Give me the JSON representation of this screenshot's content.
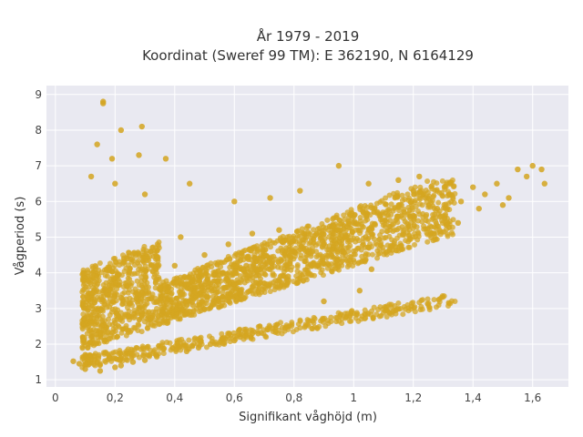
{
  "chart_data": {
    "type": "scatter",
    "title_lines": [
      "År 1979 - 2019",
      "Koordinat (Sweref 99 TM): E 362190, N 6164129"
    ],
    "xlabel": "Signifikant våghöjd (m)",
    "ylabel": "Vågperiod (s)",
    "xlim": [
      -0.03,
      1.72
    ],
    "ylim": [
      0.8,
      9.25
    ],
    "x_ticks": [
      0,
      0.2,
      0.4,
      0.6,
      0.8,
      1,
      1.2,
      1.4,
      1.6
    ],
    "x_tick_labels": [
      "0",
      "0,2",
      "0,4",
      "0,6",
      "0,8",
      "1",
      "1,2",
      "1,4",
      "1,6"
    ],
    "y_ticks": [
      1,
      2,
      3,
      4,
      5,
      6,
      7,
      8,
      9
    ],
    "y_tick_labels": [
      "1",
      "2",
      "3",
      "4",
      "5",
      "6",
      "7",
      "8",
      "9"
    ],
    "grid": true,
    "legend": "none",
    "marker_color": "#D4A520",
    "background_color": "#E9E9F1",
    "points": [
      [
        0.06,
        1.52
      ],
      [
        0.08,
        1.45
      ],
      [
        0.1,
        1.3
      ],
      [
        0.1,
        1.7
      ],
      [
        0.12,
        2.2
      ],
      [
        0.14,
        2.8
      ],
      [
        0.15,
        1.25
      ],
      [
        0.16,
        3.5
      ],
      [
        0.18,
        4.1
      ],
      [
        0.2,
        1.35
      ],
      [
        0.2,
        2.6
      ],
      [
        0.22,
        3.3
      ],
      [
        0.24,
        4.4
      ],
      [
        0.26,
        1.5
      ],
      [
        0.28,
        3.0
      ],
      [
        0.3,
        3.8
      ],
      [
        0.32,
        4.6
      ],
      [
        0.34,
        1.65
      ],
      [
        0.36,
        2.9
      ],
      [
        0.38,
        3.6
      ],
      [
        0.4,
        4.2
      ],
      [
        0.42,
        5.0
      ],
      [
        0.44,
        1.8
      ],
      [
        0.46,
        3.1
      ],
      [
        0.48,
        3.9
      ],
      [
        0.5,
        4.5
      ],
      [
        0.52,
        2.0
      ],
      [
        0.54,
        3.3
      ],
      [
        0.56,
        4.0
      ],
      [
        0.58,
        4.8
      ],
      [
        0.6,
        2.1
      ],
      [
        0.62,
        3.4
      ],
      [
        0.64,
        4.2
      ],
      [
        0.66,
        5.1
      ],
      [
        0.68,
        2.3
      ],
      [
        0.7,
        3.6
      ],
      [
        0.72,
        4.4
      ],
      [
        0.75,
        5.2
      ],
      [
        0.78,
        3.9
      ],
      [
        0.8,
        4.6
      ],
      [
        0.84,
        5.0
      ],
      [
        0.88,
        4.2
      ],
      [
        0.92,
        5.3
      ],
      [
        0.96,
        4.6
      ],
      [
        1.0,
        5.4
      ],
      [
        1.04,
        5.0
      ],
      [
        1.08,
        5.7
      ],
      [
        1.12,
        5.3
      ],
      [
        1.16,
        5.9
      ],
      [
        1.2,
        5.6
      ],
      [
        1.24,
        6.1
      ],
      [
        1.28,
        5.8
      ],
      [
        1.32,
        6.2
      ],
      [
        1.36,
        6.0
      ],
      [
        1.4,
        6.4
      ],
      [
        1.44,
        6.2
      ],
      [
        1.48,
        6.5
      ],
      [
        1.52,
        6.1
      ],
      [
        1.55,
        6.9
      ],
      [
        1.58,
        6.7
      ],
      [
        1.6,
        7.0
      ],
      [
        1.63,
        6.9
      ],
      [
        1.64,
        6.5
      ],
      [
        0.16,
        8.8
      ],
      [
        0.16,
        8.75
      ],
      [
        0.22,
        8.0
      ],
      [
        0.29,
        8.1
      ],
      [
        0.14,
        7.6
      ],
      [
        0.19,
        7.2
      ],
      [
        0.28,
        7.3
      ],
      [
        0.37,
        7.2
      ],
      [
        0.12,
        6.7
      ],
      [
        0.2,
        6.5
      ],
      [
        0.3,
        6.2
      ],
      [
        0.45,
        6.5
      ],
      [
        0.6,
        6.0
      ],
      [
        0.72,
        6.1
      ],
      [
        0.82,
        6.3
      ],
      [
        0.95,
        7.0
      ],
      [
        1.05,
        6.5
      ],
      [
        1.15,
        6.6
      ],
      [
        1.22,
        6.7
      ],
      [
        1.35,
        5.4
      ],
      [
        1.42,
        5.8
      ],
      [
        1.5,
        5.9
      ],
      [
        0.66,
        2.3
      ],
      [
        0.9,
        3.2
      ],
      [
        1.02,
        3.5
      ],
      [
        1.06,
        4.1
      ],
      [
        0.62,
        2.2
      ],
      [
        0.56,
        2.15
      ],
      [
        0.48,
        1.9
      ],
      [
        0.3,
        1.55
      ],
      [
        0.22,
        1.4
      ]
    ]
  }
}
